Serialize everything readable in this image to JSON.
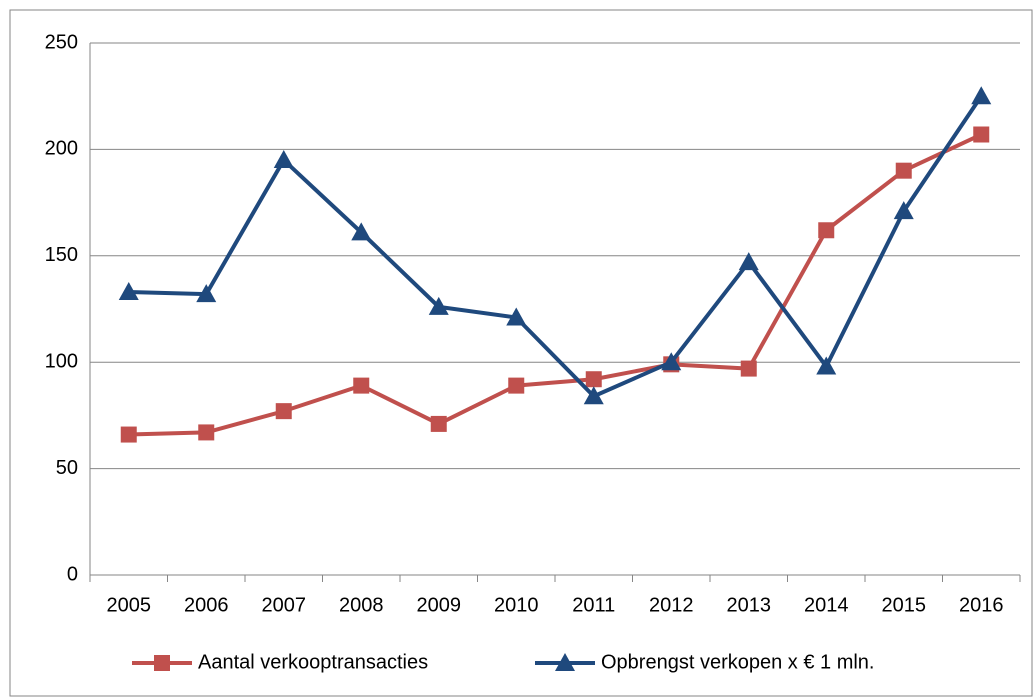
{
  "chart_data": {
    "type": "line",
    "categories": [
      "2005",
      "2006",
      "2007",
      "2008",
      "2009",
      "2010",
      "2011",
      "2012",
      "2013",
      "2014",
      "2015",
      "2016"
    ],
    "series": [
      {
        "name": "Aantal verkooptransacties",
        "color": "#c0504d",
        "marker": "square",
        "values": [
          66,
          67,
          77,
          89,
          71,
          89,
          92,
          99,
          97,
          162,
          190,
          207
        ]
      },
      {
        "name": "Opbrengst verkopen x € 1 mln.",
        "color": "#1f497d",
        "marker": "triangle",
        "values": [
          133,
          132,
          195,
          161,
          126,
          121,
          84,
          100,
          147,
          98,
          171,
          225
        ]
      }
    ],
    "ylim": [
      0,
      250
    ],
    "yticks": [
      0,
      50,
      100,
      150,
      200,
      250
    ],
    "grid": true,
    "legend": "bottom"
  }
}
